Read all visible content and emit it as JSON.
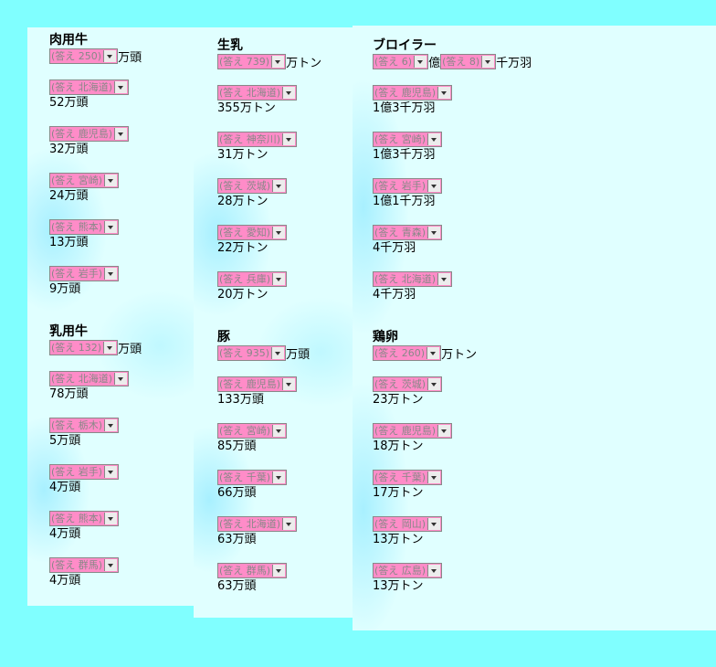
{
  "columns": [
    {
      "sections": [
        {
          "title": "肉用牛",
          "total": [
            {
              "select": "(答え 250)",
              "unit": "万頭"
            }
          ],
          "items": [
            {
              "select": "(答え 北海道)",
              "value": "52万頭"
            },
            {
              "select": "(答え 鹿児島)",
              "value": "32万頭"
            },
            {
              "select": "(答え 宮崎)",
              "value": "24万頭"
            },
            {
              "select": "(答え 熊本)",
              "value": "13万頭"
            },
            {
              "select": "(答え 岩手)",
              "value": "9万頭"
            }
          ]
        },
        {
          "title": "乳用牛",
          "total": [
            {
              "select": "(答え 132)",
              "unit": "万頭"
            }
          ],
          "items": [
            {
              "select": "(答え 北海道)",
              "value": "78万頭"
            },
            {
              "select": "(答え 栃木)",
              "value": "5万頭"
            },
            {
              "select": "(答え 岩手)",
              "value": "4万頭"
            },
            {
              "select": "(答え 熊本)",
              "value": "4万頭"
            },
            {
              "select": "(答え 群馬)",
              "value": "4万頭"
            }
          ]
        }
      ]
    },
    {
      "sections": [
        {
          "title": "生乳",
          "total": [
            {
              "select": "(答え 739)",
              "unit": "万トン"
            }
          ],
          "items": [
            {
              "select": "(答え 北海道)",
              "value": "355万トン"
            },
            {
              "select": "(答え 神奈川)",
              "value": "31万トン"
            },
            {
              "select": "(答え 茨城)",
              "value": "28万トン"
            },
            {
              "select": "(答え 愛知)",
              "value": "22万トン"
            },
            {
              "select": "(答え 兵庫)",
              "value": "20万トン"
            }
          ]
        },
        {
          "title": "豚",
          "total": [
            {
              "select": "(答え 935)",
              "unit": "万頭"
            }
          ],
          "items": [
            {
              "select": "(答え 鹿児島)",
              "value": "133万頭"
            },
            {
              "select": "(答え 宮崎)",
              "value": "85万頭"
            },
            {
              "select": "(答え 千葉)",
              "value": "66万頭"
            },
            {
              "select": "(答え 北海道)",
              "value": "63万頭"
            },
            {
              "select": "(答え 群馬)",
              "value": "63万頭"
            }
          ]
        }
      ]
    },
    {
      "sections": [
        {
          "title": "ブロイラー",
          "total": [
            {
              "select": "(答え 6)",
              "unit": "億"
            },
            {
              "select": "(答え 8)",
              "unit": "千万羽"
            }
          ],
          "items": [
            {
              "select": "(答え 鹿児島)",
              "value": "1億3千万羽"
            },
            {
              "select": "(答え 宮崎)",
              "value": "1億3千万羽"
            },
            {
              "select": "(答え 岩手)",
              "value": "1億1千万羽"
            },
            {
              "select": "(答え 青森)",
              "value": "4千万羽"
            },
            {
              "select": "(答え 北海道)",
              "value": "4千万羽"
            }
          ]
        },
        {
          "title": "鶏卵",
          "total": [
            {
              "select": "(答え 260)",
              "unit": "万トン"
            }
          ],
          "items": [
            {
              "select": "(答え 茨城)",
              "value": "23万トン"
            },
            {
              "select": "(答え 鹿児島)",
              "value": "18万トン"
            },
            {
              "select": "(答え 千葉)",
              "value": "17万トン"
            },
            {
              "select": "(答え 岡山)",
              "value": "13万トン"
            },
            {
              "select": "(答え 広島)",
              "value": "13万トン"
            }
          ]
        }
      ]
    }
  ]
}
